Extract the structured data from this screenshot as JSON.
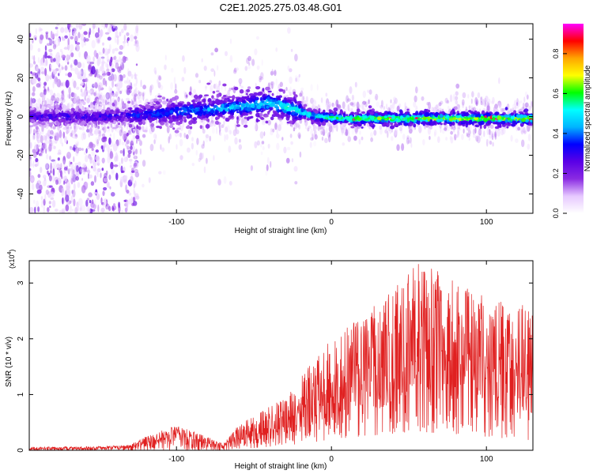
{
  "title": "C2E1.2025.275.03.48.G01",
  "chart_data": [
    {
      "type": "heatmap",
      "title": "C2E1.2025.275.03.48.G01",
      "xlabel": "Height of straight line (km)",
      "ylabel": "Frequency (Hz)",
      "xlim": [
        -195,
        130
      ],
      "ylim": [
        -50,
        48
      ],
      "xticks": [
        -100,
        0,
        100
      ],
      "yticks": [
        -40,
        -20,
        0,
        20,
        40
      ],
      "colorbar": {
        "label": "Normalized spectral amplitude",
        "range": [
          0,
          0.95
        ],
        "ticks": [
          0,
          0.2,
          0.4,
          0.6,
          0.8
        ],
        "colormap": [
          "#ffffff",
          "#e6c8ff",
          "#8a2be2",
          "#5a00e6",
          "#0000ff",
          "#00b4ff",
          "#00ffff",
          "#00ff00",
          "#ffff00",
          "#ffa500",
          "#ff0000",
          "#ff00ff"
        ]
      },
      "features": {
        "diffuse_noise_region_x": [
          -195,
          -130
        ],
        "ridge_center_hz": [
          {
            "x": -190,
            "y": 0
          },
          {
            "x": -150,
            "y": 0
          },
          {
            "x": -120,
            "y": 1
          },
          {
            "x": -90,
            "y": 3
          },
          {
            "x": -60,
            "y": 5
          },
          {
            "x": -40,
            "y": 7
          },
          {
            "x": -30,
            "y": 5
          },
          {
            "x": -10,
            "y": 0
          },
          {
            "x": 10,
            "y": -1
          },
          {
            "x": 50,
            "y": -1
          },
          {
            "x": 100,
            "y": -1
          },
          {
            "x": 130,
            "y": -1
          }
        ],
        "peak_amplitude_region_x": [
          0,
          130
        ]
      }
    },
    {
      "type": "line",
      "xlabel": "Height of straight line (km)",
      "ylabel": "SNR (10 * v/v)",
      "yscale_label": "(x10",
      "yscale_exponent": "4",
      "xlim": [
        -195,
        130
      ],
      "ylim": [
        0,
        3.4
      ],
      "xticks": [
        -100,
        0,
        100
      ],
      "yticks": [
        0,
        1,
        2,
        3
      ],
      "color": "#e02020",
      "envelope": [
        {
          "x": -195,
          "lo": 0,
          "hi": 0.06
        },
        {
          "x": -150,
          "lo": 0,
          "hi": 0.07
        },
        {
          "x": -130,
          "lo": 0,
          "hi": 0.1
        },
        {
          "x": -120,
          "lo": 0,
          "hi": 0.25
        },
        {
          "x": -100,
          "lo": 0,
          "hi": 0.45
        },
        {
          "x": -85,
          "lo": 0,
          "hi": 0.3
        },
        {
          "x": -70,
          "lo": 0,
          "hi": 0.12
        },
        {
          "x": -60,
          "lo": 0.02,
          "hi": 0.45
        },
        {
          "x": -45,
          "lo": 0.05,
          "hi": 0.7
        },
        {
          "x": -25,
          "lo": 0.1,
          "hi": 1.1
        },
        {
          "x": -10,
          "lo": 0.15,
          "hi": 1.7
        },
        {
          "x": 0,
          "lo": 0.2,
          "hi": 2.0
        },
        {
          "x": 20,
          "lo": 0.25,
          "hi": 2.4
        },
        {
          "x": 40,
          "lo": 0.3,
          "hi": 2.9
        },
        {
          "x": 55,
          "lo": 0.3,
          "hi": 3.4
        },
        {
          "x": 70,
          "lo": 0.3,
          "hi": 3.2
        },
        {
          "x": 90,
          "lo": 0.25,
          "hi": 2.9
        },
        {
          "x": 110,
          "lo": 0.2,
          "hi": 2.7
        },
        {
          "x": 130,
          "lo": 0.15,
          "hi": 2.6
        }
      ]
    }
  ]
}
